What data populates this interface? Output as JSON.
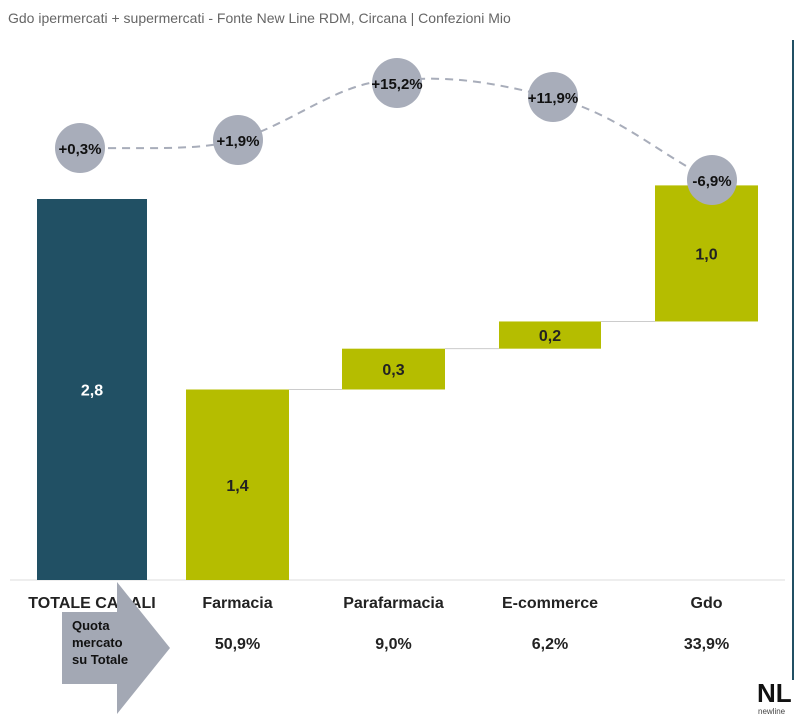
{
  "chart_data": {
    "type": "waterfall",
    "title": "Gdo ipermercati + supermercati - Fonte New Line RDM, Circana | Confezioni Mio",
    "categories": [
      "TOTALE CANALI",
      "Farmacia",
      "Parafarmacia",
      "E-commerce",
      "Gdo"
    ],
    "values": [
      2.8,
      1.4,
      0.3,
      0.2,
      1.0
    ],
    "value_labels": [
      "2,8",
      "1,4",
      "0,3",
      "0,2",
      "1,0"
    ],
    "growth_labels": [
      "+0,3%",
      "+1,9%",
      "+15,2%",
      "+11,9%",
      "-6,9%"
    ],
    "growth_values": [
      0.3,
      1.9,
      15.2,
      11.9,
      -6.9
    ],
    "share_label": "Quota mercato su Totale",
    "share_lines": [
      "Quota",
      "mercato",
      "su Totale"
    ],
    "shares": [
      "50,9%",
      "9,0%",
      "6,2%",
      "33,9%"
    ],
    "logo_text": "NL newline",
    "colors": {
      "total": "#215064",
      "channel": "#b5bd00",
      "bubble": "#a8adba",
      "arrow": "#a3a8b4",
      "border": "#215064"
    }
  }
}
